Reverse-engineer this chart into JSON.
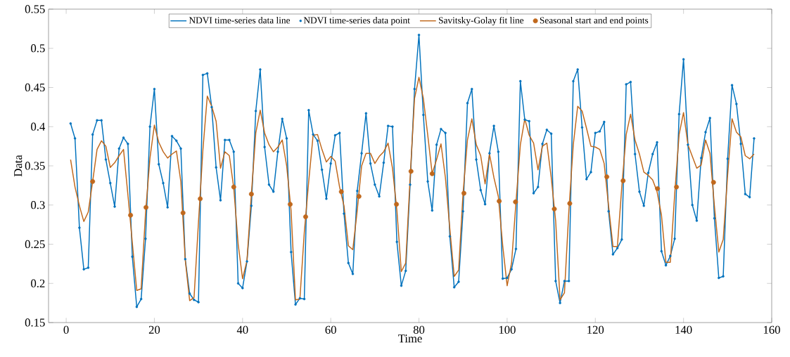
{
  "chart_data": {
    "type": "line",
    "xlabel": "Time",
    "ylabel": "Data",
    "xlim": [
      -4,
      160
    ],
    "ylim": [
      0.15,
      0.55
    ],
    "xticks": [
      0,
      20,
      40,
      60,
      80,
      100,
      120,
      140,
      160
    ],
    "yticks": [
      0.15,
      0.2,
      0.25,
      0.3,
      0.35,
      0.4,
      0.45,
      0.5,
      0.55
    ],
    "legend": "top",
    "grid": false,
    "x": [
      1,
      2,
      3,
      4,
      5,
      6,
      7,
      8,
      9,
      10,
      11,
      12,
      13,
      14,
      15,
      16,
      17,
      18,
      19,
      20,
      21,
      22,
      23,
      24,
      25,
      26,
      27,
      28,
      29,
      30,
      31,
      32,
      33,
      34,
      35,
      36,
      37,
      38,
      39,
      40,
      41,
      42,
      43,
      44,
      45,
      46,
      47,
      48,
      49,
      50,
      51,
      52,
      53,
      54,
      55,
      56,
      57,
      58,
      59,
      60,
      61,
      62,
      63,
      64,
      65,
      66,
      67,
      68,
      69,
      70,
      71,
      72,
      73,
      74,
      75,
      76,
      77,
      78,
      79,
      80,
      81,
      82,
      83,
      84,
      85,
      86,
      87,
      88,
      89,
      90,
      91,
      92,
      93,
      94,
      95,
      96,
      97,
      98,
      99,
      100,
      101,
      102,
      103,
      104,
      105,
      106,
      107,
      108,
      109,
      110,
      111,
      112,
      113,
      114,
      115,
      116,
      117,
      118,
      119,
      120,
      121,
      122,
      123,
      124,
      125,
      126,
      127,
      128,
      129,
      130,
      131,
      132,
      133,
      134,
      135,
      136,
      137,
      138,
      139,
      140,
      141,
      142,
      143,
      144,
      145,
      146,
      147,
      148,
      149,
      150,
      151,
      152,
      153,
      154,
      155,
      156
    ],
    "series": [
      {
        "name": "NDVI time-series data line",
        "marker": "none",
        "color": "#0072bd",
        "values": [
          0.404,
          0.385,
          0.271,
          0.218,
          0.22,
          0.39,
          0.408,
          0.408,
          0.358,
          0.328,
          0.298,
          0.372,
          0.386,
          0.378,
          0.234,
          0.17,
          0.18,
          0.257,
          0.4,
          0.448,
          0.352,
          0.328,
          0.297,
          0.388,
          0.382,
          0.372,
          0.231,
          0.187,
          0.179,
          0.176,
          0.466,
          0.468,
          0.425,
          0.348,
          0.306,
          0.383,
          0.383,
          0.368,
          0.2,
          0.194,
          0.228,
          0.299,
          0.42,
          0.473,
          0.374,
          0.326,
          0.317,
          0.368,
          0.41,
          0.385,
          0.24,
          0.173,
          0.181,
          0.18,
          0.421,
          0.39,
          0.382,
          0.345,
          0.308,
          0.353,
          0.389,
          0.392,
          0.289,
          0.226,
          0.212,
          0.318,
          0.366,
          0.417,
          0.353,
          0.326,
          0.311,
          0.354,
          0.401,
          0.4,
          0.253,
          0.197,
          0.216,
          0.326,
          0.448,
          0.517,
          0.415,
          0.33,
          0.293,
          0.377,
          0.397,
          0.392,
          0.26,
          0.195,
          0.202,
          0.292,
          0.43,
          0.448,
          0.358,
          0.319,
          0.301,
          0.366,
          0.401,
          0.368,
          0.206,
          0.207,
          0.218,
          0.244,
          0.458,
          0.409,
          0.407,
          0.315,
          0.323,
          0.378,
          0.396,
          0.391,
          0.203,
          0.175,
          0.203,
          0.203,
          0.458,
          0.473,
          0.399,
          0.333,
          0.342,
          0.392,
          0.394,
          0.406,
          0.292,
          0.237,
          0.245,
          0.256,
          0.454,
          0.457,
          0.365,
          0.317,
          0.299,
          0.341,
          0.365,
          0.38,
          0.241,
          0.223,
          0.235,
          0.257,
          0.416,
          0.486,
          0.377,
          0.3,
          0.28,
          0.36,
          0.393,
          0.411,
          0.283,
          0.207,
          0.209,
          0.359,
          0.453,
          0.429,
          0.378,
          0.314,
          0.31,
          0.385
        ]
      },
      {
        "name": "NDVI time-series data point",
        "type": "scatter",
        "marker": "circle",
        "color": "#0072bd",
        "values": [
          0.404,
          0.385,
          0.271,
          0.218,
          0.22,
          0.39,
          0.408,
          0.408,
          0.358,
          0.328,
          0.298,
          0.372,
          0.386,
          0.378,
          0.234,
          0.17,
          0.18,
          0.257,
          0.4,
          0.448,
          0.352,
          0.328,
          0.297,
          0.388,
          0.382,
          0.372,
          0.231,
          0.187,
          0.179,
          0.176,
          0.466,
          0.468,
          0.425,
          0.348,
          0.306,
          0.383,
          0.383,
          0.368,
          0.2,
          0.194,
          0.228,
          0.299,
          0.42,
          0.473,
          0.374,
          0.326,
          0.317,
          0.368,
          0.41,
          0.385,
          0.24,
          0.173,
          0.181,
          0.18,
          0.421,
          0.39,
          0.382,
          0.345,
          0.308,
          0.353,
          0.389,
          0.392,
          0.289,
          0.226,
          0.212,
          0.318,
          0.366,
          0.417,
          0.353,
          0.326,
          0.311,
          0.354,
          0.401,
          0.4,
          0.253,
          0.197,
          0.216,
          0.326,
          0.448,
          0.517,
          0.415,
          0.33,
          0.293,
          0.377,
          0.397,
          0.392,
          0.26,
          0.195,
          0.202,
          0.292,
          0.43,
          0.448,
          0.358,
          0.319,
          0.301,
          0.366,
          0.401,
          0.368,
          0.206,
          0.207,
          0.218,
          0.244,
          0.458,
          0.409,
          0.407,
          0.315,
          0.323,
          0.378,
          0.396,
          0.391,
          0.203,
          0.175,
          0.203,
          0.203,
          0.458,
          0.473,
          0.399,
          0.333,
          0.342,
          0.392,
          0.394,
          0.406,
          0.292,
          0.237,
          0.245,
          0.256,
          0.454,
          0.457,
          0.365,
          0.317,
          0.299,
          0.341,
          0.365,
          0.38,
          0.241,
          0.223,
          0.235,
          0.257,
          0.416,
          0.486,
          0.377,
          0.3,
          0.28,
          0.36,
          0.393,
          0.411,
          0.283,
          0.207,
          0.209,
          0.359,
          0.453,
          0.429,
          0.378,
          0.314,
          0.31,
          0.385
        ]
      },
      {
        "name": "Savitsky-Golay fit line",
        "marker": "none",
        "color": "#c0681c",
        "values": [
          0.358,
          0.323,
          0.299,
          0.279,
          0.291,
          0.33,
          0.371,
          0.382,
          0.375,
          0.348,
          0.354,
          0.363,
          0.371,
          0.313,
          0.252,
          0.191,
          0.193,
          0.29,
          0.36,
          0.402,
          0.38,
          0.368,
          0.36,
          0.365,
          0.369,
          0.33,
          0.23,
          0.178,
          0.182,
          0.278,
          0.37,
          0.439,
          0.426,
          0.407,
          0.347,
          0.368,
          0.363,
          0.322,
          0.25,
          0.206,
          0.229,
          0.314,
          0.392,
          0.421,
          0.392,
          0.377,
          0.368,
          0.374,
          0.383,
          0.35,
          0.293,
          0.179,
          0.18,
          0.265,
          0.33,
          0.389,
          0.39,
          0.371,
          0.355,
          0.362,
          0.356,
          0.323,
          0.299,
          0.248,
          0.243,
          0.293,
          0.35,
          0.366,
          0.366,
          0.353,
          0.362,
          0.368,
          0.379,
          0.347,
          0.293,
          0.215,
          0.226,
          0.335,
          0.436,
          0.463,
          0.436,
          0.389,
          0.34,
          0.358,
          0.378,
          0.335,
          0.27,
          0.209,
          0.217,
          0.315,
          0.383,
          0.41,
          0.377,
          0.363,
          0.327,
          0.365,
          0.335,
          0.311,
          0.248,
          0.197,
          0.226,
          0.303,
          0.377,
          0.41,
          0.389,
          0.379,
          0.345,
          0.375,
          0.379,
          0.335,
          0.28,
          0.179,
          0.188,
          0.293,
          0.377,
          0.426,
          0.42,
          0.398,
          0.375,
          0.374,
          0.371,
          0.353,
          0.299,
          0.247,
          0.247,
          0.323,
          0.39,
          0.416,
          0.383,
          0.365,
          0.342,
          0.338,
          0.332,
          0.317,
          0.287,
          0.227,
          0.227,
          0.314,
          0.39,
          0.418,
          0.377,
          0.362,
          0.347,
          0.351,
          0.383,
          0.366,
          0.299,
          0.24,
          0.256,
          0.338,
          0.41,
          0.393,
          0.387,
          0.363,
          0.359,
          0.365
        ]
      },
      {
        "name": "Seasonal start and end points",
        "type": "scatter",
        "marker": "circle",
        "color": "#c0681c",
        "x": [
          6.0,
          14.6,
          18.1,
          26.5,
          30.4,
          38.0,
          42.0,
          50.8,
          54.3,
          62.4,
          66.4,
          74.9,
          78.2,
          83.0,
          90.2,
          98.2,
          101.9,
          110.7,
          114.2,
          122.6,
          126.3,
          134.1,
          138.4,
          146.8
        ],
        "values": [
          0.33,
          0.287,
          0.297,
          0.29,
          0.308,
          0.323,
          0.314,
          0.301,
          0.285,
          0.317,
          0.311,
          0.301,
          0.343,
          0.34,
          0.315,
          0.305,
          0.304,
          0.295,
          0.302,
          0.336,
          0.331,
          0.321,
          0.323,
          0.329
        ]
      }
    ]
  }
}
